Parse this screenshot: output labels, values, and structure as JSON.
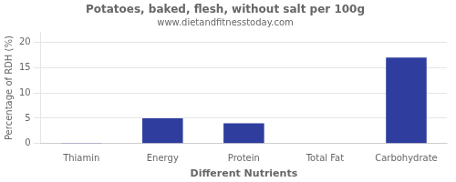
{
  "chart_data": {
    "type": "bar",
    "title": "Potatoes, baked, flesh, without salt per 100g",
    "subtitle": "www.dietandfitnesstoday.com",
    "x_label": "Different Nutrients",
    "y_label": "Percentage of RDH (%)",
    "categories": [
      "Thiamin",
      "Energy",
      "Protein",
      "Total Fat",
      "Carbohydrate"
    ],
    "values": [
      0.07,
      5.0,
      4.0,
      0.1,
      17.0
    ],
    "color": "#2e3d9e",
    "ylim": [
      0,
      22
    ],
    "yticks": [
      0,
      5,
      10,
      15,
      20
    ],
    "grid": true
  }
}
